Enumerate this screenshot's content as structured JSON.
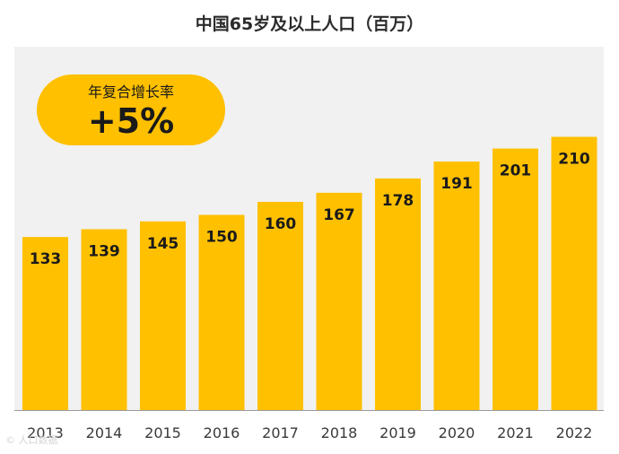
{
  "chart_data": {
    "type": "bar",
    "title": "中国65岁及以上人口（百万）",
    "categories": [
      "2013",
      "2014",
      "2015",
      "2016",
      "2017",
      "2018",
      "2019",
      "2020",
      "2021",
      "2022"
    ],
    "values": [
      133,
      139,
      145,
      150,
      160,
      167,
      178,
      191,
      201,
      210
    ],
    "data_labels": [
      "133",
      "139",
      "145",
      "150",
      "160",
      "167",
      "178",
      "191",
      "201",
      "210"
    ],
    "xlabel": "",
    "ylabel": "",
    "ylim": [
      0,
      220
    ],
    "grid": false,
    "bar_color": "#ffc000",
    "annotation": {
      "label": "年复合增长率",
      "value": "+5%"
    }
  },
  "watermark": "© 人口数据"
}
